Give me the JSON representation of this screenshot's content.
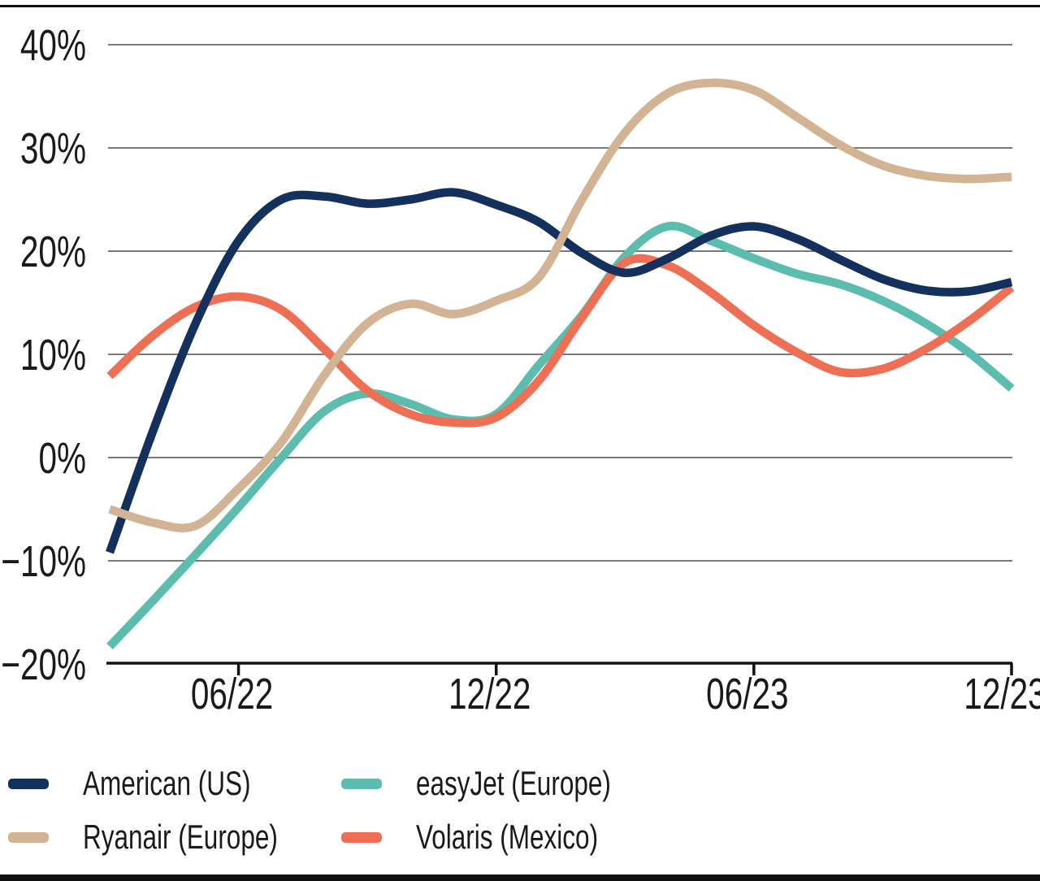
{
  "figure": {
    "title": "",
    "background": "#ffffff",
    "text_color": "#1a1a1a",
    "gridline_color": "#4d4d4d",
    "axis_color": "#111111"
  },
  "y_axis": {
    "tick_labels": [
      "40%",
      "30%",
      "20%",
      "10%",
      "0%",
      "−10%",
      "−20%"
    ],
    "tick_values": [
      40,
      30,
      20,
      10,
      0,
      -10,
      -20
    ]
  },
  "x_axis": {
    "tick_labels": [
      "06/22",
      "12/22",
      "06/23",
      "12/23"
    ],
    "tick_indices": [
      3,
      9,
      15,
      21
    ]
  },
  "chart_data": {
    "type": "line",
    "x": [
      "03/22",
      "04/22",
      "05/22",
      "06/22",
      "07/22",
      "08/22",
      "09/22",
      "10/22",
      "11/22",
      "12/22",
      "01/23",
      "02/23",
      "03/23",
      "04/23",
      "05/23",
      "06/23",
      "07/23",
      "08/23",
      "09/23",
      "10/23",
      "11/23",
      "12/23"
    ],
    "x_tick_labels": [
      "06/22",
      "12/22",
      "06/23",
      "12/23"
    ],
    "x_tick_indices": [
      3,
      9,
      15,
      21
    ],
    "ylim": [
      -20,
      40
    ],
    "y_tick_step": 10,
    "grid": "horizontal",
    "legend_position": "bottom-left",
    "title": "",
    "xlabel": "",
    "ylabel": "",
    "series": [
      {
        "name": "American (US)",
        "color": "#14305c",
        "values": [
          -9.2,
          2.5,
          13.0,
          21.0,
          25.0,
          25.3,
          24.6,
          25.0,
          25.7,
          24.5,
          22.8,
          19.8,
          17.9,
          19.3,
          21.5,
          22.4,
          21.2,
          19.2,
          17.3,
          16.2,
          16.1,
          17.0
        ]
      },
      {
        "name": "Ryanair (Europe)",
        "color": "#d2b495",
        "values": [
          -5.0,
          -6.3,
          -6.6,
          -3.0,
          1.5,
          8.0,
          13.0,
          14.9,
          13.9,
          15.2,
          17.5,
          25.0,
          31.5,
          35.3,
          36.3,
          35.6,
          33.0,
          30.3,
          28.3,
          27.3,
          27.0,
          27.2
        ]
      },
      {
        "name": "easyJet (Europe)",
        "color": "#5cbcae",
        "values": [
          -18.3,
          -13.9,
          -9.4,
          -4.8,
          0.0,
          4.5,
          6.2,
          5.2,
          3.7,
          4.2,
          9.0,
          13.8,
          19.5,
          22.4,
          21.0,
          19.3,
          17.8,
          16.8,
          15.2,
          13.0,
          10.2,
          6.7
        ]
      },
      {
        "name": "Volaris (Mexico)",
        "color": "#ed7055",
        "values": [
          7.9,
          11.8,
          14.6,
          15.6,
          14.3,
          10.5,
          6.5,
          4.2,
          3.4,
          3.9,
          7.5,
          13.6,
          18.9,
          18.6,
          16.0,
          12.8,
          10.2,
          8.3,
          8.6,
          10.5,
          13.2,
          16.5
        ]
      }
    ]
  },
  "legend": {
    "display_order": [
      0,
      2,
      1,
      3
    ]
  }
}
